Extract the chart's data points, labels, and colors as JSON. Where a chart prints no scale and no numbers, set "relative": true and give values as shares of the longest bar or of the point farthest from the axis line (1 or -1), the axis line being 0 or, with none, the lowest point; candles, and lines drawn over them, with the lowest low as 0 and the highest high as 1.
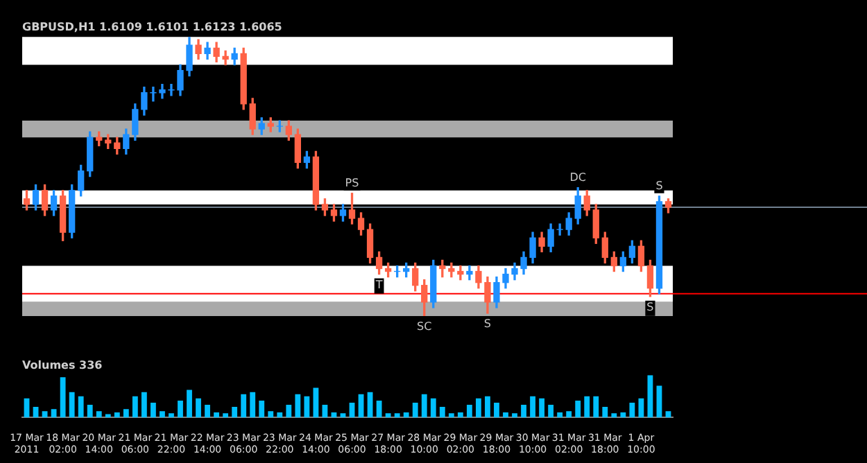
{
  "chart_data": [
    {
      "type": "candlestick",
      "title": "GBPUSD,H1 1.6109 1.6101 1.6123 1.6065",
      "relative": true,
      "tick_labels": false,
      "ohlc": [
        [
          0.42,
          0.45,
          0.38,
          0.4
        ],
        [
          0.4,
          0.47,
          0.38,
          0.45
        ],
        [
          0.45,
          0.47,
          0.36,
          0.38
        ],
        [
          0.38,
          0.45,
          0.36,
          0.43
        ],
        [
          0.43,
          0.45,
          0.27,
          0.3
        ],
        [
          0.3,
          0.47,
          0.28,
          0.45
        ],
        [
          0.45,
          0.54,
          0.43,
          0.52
        ],
        [
          0.52,
          0.66,
          0.5,
          0.64
        ],
        [
          0.64,
          0.66,
          0.61,
          0.63
        ],
        [
          0.63,
          0.65,
          0.6,
          0.62
        ],
        [
          0.62,
          0.64,
          0.58,
          0.6
        ],
        [
          0.6,
          0.67,
          0.58,
          0.65
        ],
        [
          0.65,
          0.76,
          0.63,
          0.74
        ],
        [
          0.74,
          0.82,
          0.72,
          0.8
        ],
        [
          0.8,
          0.82,
          0.77,
          0.8
        ],
        [
          0.8,
          0.83,
          0.78,
          0.81
        ],
        [
          0.81,
          0.83,
          0.79,
          0.81
        ],
        [
          0.81,
          0.9,
          0.79,
          0.88
        ],
        [
          0.88,
          1.0,
          0.86,
          0.97
        ],
        [
          0.97,
          0.99,
          0.92,
          0.94
        ],
        [
          0.94,
          0.98,
          0.92,
          0.96
        ],
        [
          0.96,
          0.98,
          0.91,
          0.93
        ],
        [
          0.93,
          0.95,
          0.9,
          0.92
        ],
        [
          0.92,
          0.96,
          0.9,
          0.94
        ],
        [
          0.94,
          0.96,
          0.74,
          0.76
        ],
        [
          0.76,
          0.78,
          0.65,
          0.67
        ],
        [
          0.67,
          0.71,
          0.65,
          0.69
        ],
        [
          0.69,
          0.71,
          0.66,
          0.68
        ],
        [
          0.68,
          0.7,
          0.66,
          0.68
        ],
        [
          0.68,
          0.7,
          0.63,
          0.65
        ],
        [
          0.65,
          0.67,
          0.53,
          0.55
        ],
        [
          0.55,
          0.59,
          0.53,
          0.57
        ],
        [
          0.57,
          0.59,
          0.38,
          0.4
        ],
        [
          0.4,
          0.42,
          0.36,
          0.38
        ],
        [
          0.38,
          0.4,
          0.34,
          0.36
        ],
        [
          0.36,
          0.4,
          0.34,
          0.38
        ],
        [
          0.38,
          0.44,
          0.33,
          0.35
        ],
        [
          0.35,
          0.37,
          0.29,
          0.31
        ],
        [
          0.31,
          0.33,
          0.19,
          0.21
        ],
        [
          0.21,
          0.23,
          0.15,
          0.17
        ],
        [
          0.17,
          0.19,
          0.14,
          0.16
        ],
        [
          0.16,
          0.18,
          0.14,
          0.16
        ],
        [
          0.16,
          0.19,
          0.14,
          0.17
        ],
        [
          0.17,
          0.19,
          0.09,
          0.11
        ],
        [
          0.11,
          0.13,
          0,
          0.05
        ],
        [
          0.05,
          0.2,
          0.03,
          0.18
        ],
        [
          0.18,
          0.2,
          0.14,
          0.17
        ],
        [
          0.17,
          0.19,
          0.14,
          0.16
        ],
        [
          0.16,
          0.18,
          0.13,
          0.15
        ],
        [
          0.15,
          0.18,
          0.13,
          0.16
        ],
        [
          0.16,
          0.18,
          0.1,
          0.12
        ],
        [
          0.12,
          0.14,
          0.01,
          0.05
        ],
        [
          0.05,
          0.14,
          0.03,
          0.12
        ],
        [
          0.12,
          0.17,
          0.1,
          0.15
        ],
        [
          0.15,
          0.19,
          0.13,
          0.17
        ],
        [
          0.17,
          0.23,
          0.15,
          0.21
        ],
        [
          0.21,
          0.3,
          0.19,
          0.28
        ],
        [
          0.28,
          0.3,
          0.23,
          0.25
        ],
        [
          0.25,
          0.33,
          0.23,
          0.31
        ],
        [
          0.31,
          0.33,
          0.29,
          0.31
        ],
        [
          0.31,
          0.37,
          0.29,
          0.35
        ],
        [
          0.35,
          0.46,
          0.33,
          0.43
        ],
        [
          0.43,
          0.45,
          0.36,
          0.38
        ],
        [
          0.38,
          0.4,
          0.26,
          0.28
        ],
        [
          0.28,
          0.3,
          0.19,
          0.21
        ],
        [
          0.21,
          0.23,
          0.16,
          0.18
        ],
        [
          0.18,
          0.23,
          0.16,
          0.21
        ],
        [
          0.21,
          0.27,
          0.19,
          0.25
        ],
        [
          0.25,
          0.27,
          0.16,
          0.18
        ],
        [
          0.18,
          0.2,
          0.07,
          0.1
        ],
        [
          0.1,
          0.43,
          0.08,
          0.41
        ],
        [
          0.41,
          0.42,
          0.37,
          0.39
        ]
      ],
      "colors": [
        "#ff6347",
        "#1e90ff",
        "#ff6347",
        "#1e90ff",
        "#ff6347",
        "#1e90ff",
        "#1e90ff",
        "#1e90ff",
        "#ff6347",
        "#ff6347",
        "#ff6347",
        "#1e90ff",
        "#1e90ff",
        "#1e90ff",
        "#1e90ff",
        "#1e90ff",
        "#1e90ff",
        "#1e90ff",
        "#1e90ff",
        "#ff6347",
        "#1e90ff",
        "#ff6347",
        "#ff6347",
        "#1e90ff",
        "#ff6347",
        "#ff6347",
        "#1e90ff",
        "#ff6347",
        "#1e90ff",
        "#ff6347",
        "#ff6347",
        "#1e90ff",
        "#ff6347",
        "#ff6347",
        "#ff6347",
        "#1e90ff",
        "#ff6347",
        "#ff6347",
        "#ff6347",
        "#ff6347",
        "#ff6347",
        "#1e90ff",
        "#1e90ff",
        "#ff6347",
        "#ff6347",
        "#1e90ff",
        "#ff6347",
        "#ff6347",
        "#ff6347",
        "#1e90ff",
        "#ff6347",
        "#ff6347",
        "#1e90ff",
        "#1e90ff",
        "#1e90ff",
        "#1e90ff",
        "#1e90ff",
        "#ff6347",
        "#1e90ff",
        "#1e90ff",
        "#1e90ff",
        "#1e90ff",
        "#ff6347",
        "#ff6347",
        "#ff6347",
        "#ff6347",
        "#1e90ff",
        "#1e90ff",
        "#ff6347",
        "#ff6347",
        "#1e90ff",
        "#ff6347"
      ],
      "bands": [
        {
          "axis": "y",
          "from": 0.9,
          "to": 1.0,
          "color": "#ffffff"
        },
        {
          "axis": "y",
          "from": 0.64,
          "to": 0.7,
          "color": "#a9a9a9"
        },
        {
          "axis": "y",
          "from": 0.4,
          "to": 0.45,
          "color": "#ffffff"
        },
        {
          "axis": "y",
          "from": 0.05,
          "to": 0.18,
          "color": "#ffffff"
        },
        {
          "axis": "y",
          "from": 0.0,
          "to": 0.05,
          "color": "#a9a9a9"
        }
      ],
      "ref_lines": [
        {
          "axis": "y",
          "value": 0.39,
          "color": "#708090",
          "line_style": "solid"
        },
        {
          "axis": "y",
          "value": 0.08,
          "color": "#ff0000",
          "line_style": "solid"
        }
      ],
      "annotations": [
        {
          "text": "PS",
          "y": 0.44
        },
        {
          "text": "SC",
          "y": 0
        },
        {
          "text": "S",
          "y": 0.01
        },
        {
          "text": "T",
          "y": 0.15
        },
        {
          "text": "DC",
          "y": 0.46
        },
        {
          "text": "S",
          "y": 0.43
        },
        {
          "text": "S",
          "y": 0.07
        }
      ]
    },
    {
      "type": "bar",
      "title": "Volumes 336",
      "relative": true,
      "tick_labels": "x",
      "color": "#00bfff",
      "categories": [
        "17 Mar 2011",
        null,
        null,
        null,
        "18 Mar 02:00",
        null,
        null,
        null,
        "20 Mar 14:00",
        null,
        null,
        null,
        "21 Mar 06:00",
        null,
        null,
        null,
        "21 Mar 22:00",
        null,
        null,
        null,
        "22 Mar 14:00",
        null,
        null,
        null,
        "23 Mar 06:00",
        null,
        null,
        null,
        "23 Mar 22:00",
        null,
        null,
        null,
        "24 Mar 14:00",
        null,
        null,
        null,
        "25 Mar 06:00",
        null,
        null,
        null,
        "27 Mar 18:00",
        null,
        null,
        null,
        "28 Mar 10:00",
        null,
        null,
        null,
        "29 Mar 02:00",
        null,
        null,
        null,
        "29 Mar 18:00",
        null,
        null,
        null,
        "30 Mar 10:00",
        null,
        null,
        null,
        "31 Mar 02:00",
        null,
        null,
        null,
        "31 Mar 18:00",
        null,
        null,
        null,
        "1 Apr 10:00",
        null,
        null,
        null
      ],
      "values": [
        0.45,
        0.25,
        0.15,
        0.2,
        0.95,
        0.6,
        0.5,
        0.3,
        0.15,
        0.08,
        0.12,
        0.2,
        0.5,
        0.6,
        0.35,
        0.15,
        0.1,
        0.4,
        0.65,
        0.45,
        0.3,
        0.12,
        0.1,
        0.25,
        0.55,
        0.6,
        0.4,
        0.15,
        0.12,
        0.3,
        0.55,
        0.5,
        0.7,
        0.3,
        0.12,
        0.1,
        0.35,
        0.55,
        0.6,
        0.4,
        0.1,
        0.1,
        0.12,
        0.35,
        0.55,
        0.45,
        0.25,
        0.1,
        0.12,
        0.3,
        0.45,
        0.5,
        0.35,
        0.12,
        0.1,
        0.3,
        0.5,
        0.45,
        0.3,
        0.12,
        0.15,
        0.4,
        0.5,
        0.5,
        0.25,
        0.1,
        0.12,
        0.35,
        0.45,
        1.0,
        0.75,
        0.15
      ]
    }
  ]
}
